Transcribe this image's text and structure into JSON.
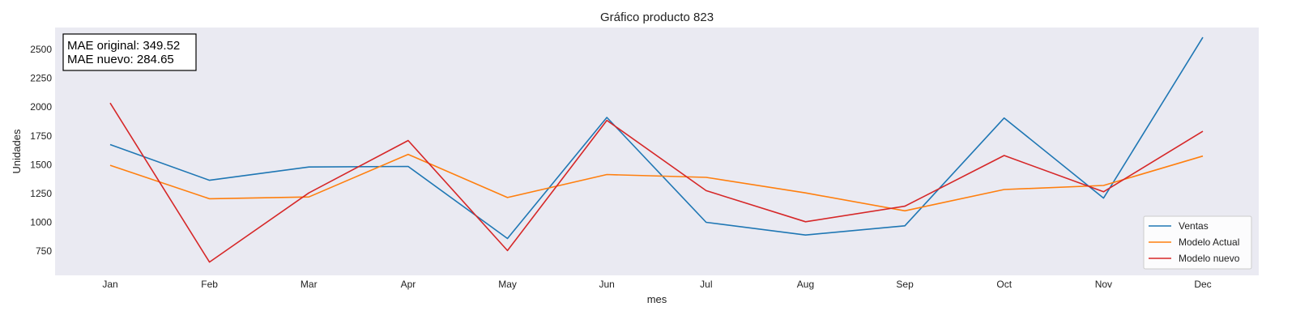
{
  "chart_data": {
    "type": "line",
    "title": "Gráfico producto 823",
    "xlabel": "mes",
    "ylabel": "Unidades",
    "categories": [
      "Jan",
      "Feb",
      "Mar",
      "Apr",
      "May",
      "Jun",
      "Jul",
      "Aug",
      "Sep",
      "Oct",
      "Nov",
      "Dec"
    ],
    "ylim": [
      540,
      2690
    ],
    "yticks": [
      750,
      1000,
      1250,
      1500,
      1750,
      2000,
      2250,
      2500
    ],
    "grid": false,
    "legend_position": "lower-right",
    "background_color": "#eaeaf2",
    "series": [
      {
        "name": "Ventas",
        "color": "#1f77b4",
        "values": [
          1675,
          1365,
          1480,
          1485,
          860,
          1910,
          1000,
          890,
          970,
          1905,
          1210,
          2605
        ]
      },
      {
        "name": "Modelo Actual",
        "color": "#ff7f0e",
        "values": [
          1495,
          1205,
          1220,
          1590,
          1215,
          1415,
          1390,
          1255,
          1100,
          1285,
          1320,
          1575
        ]
      },
      {
        "name": "Modelo nuevo",
        "color": "#d62728",
        "values": [
          2035,
          655,
          1255,
          1710,
          755,
          1885,
          1275,
          1005,
          1140,
          1580,
          1265,
          1790
        ]
      }
    ],
    "annotations": [
      "MAE original: 349.52",
      "MAE nuevo: 284.65"
    ]
  }
}
